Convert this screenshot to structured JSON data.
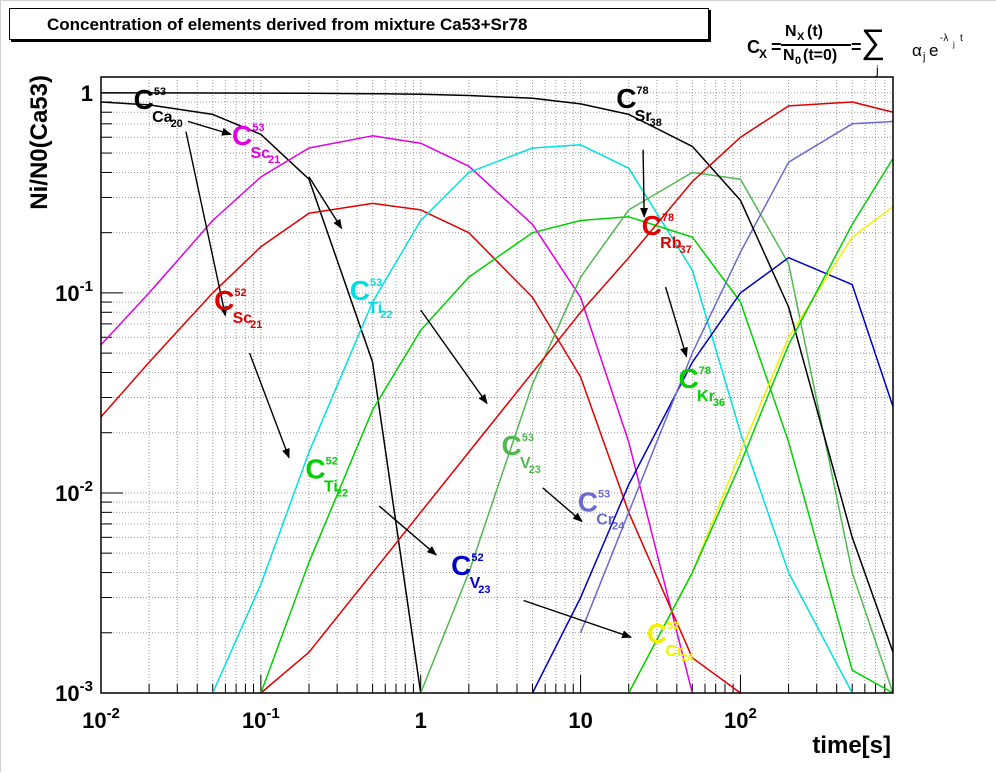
{
  "title": "Concentration of elements derived from mixture Ca53+Sr78",
  "formula": {
    "lhs": "C",
    "lhs_sub": "X",
    "eq": "=",
    "numerator": "N",
    "numerator_sub": "X",
    "numerator_arg": "(t)",
    "denominator": "N",
    "denominator_sub": "0",
    "denominator_arg": "(t=0)",
    "eq2": "=",
    "sum_symbol": "∑",
    "sum_index": "j",
    "term": "α",
    "term_sub": "j",
    "exp_base": "e",
    "exp_power": "-λ",
    "exp_power_sub": "j",
    "exp_power_var": "t"
  },
  "chart_data": {
    "type": "line",
    "title": "Concentration of elements derived from mixture Ca53+Sr78",
    "xlabel": "time[s]",
    "ylabel": "Ni/N0(Ca53)",
    "xscale": "log",
    "yscale": "log",
    "xlim": [
      0.01,
      900
    ],
    "ylim": [
      0.001,
      1.2
    ],
    "grid": true,
    "x_ticks": [
      {
        "value": 0.01,
        "base": "10",
        "exp": "-2"
      },
      {
        "value": 0.1,
        "base": "10",
        "exp": "-1"
      },
      {
        "value": 1,
        "base": "1",
        "exp": ""
      },
      {
        "value": 10,
        "base": "10",
        "exp": ""
      },
      {
        "value": 100,
        "base": "10",
        "exp": "2"
      }
    ],
    "y_ticks": [
      {
        "value": 0.001,
        "base": "10",
        "exp": "-3"
      },
      {
        "value": 0.01,
        "base": "10",
        "exp": "-2"
      },
      {
        "value": 0.1,
        "base": "10",
        "exp": "-1"
      },
      {
        "value": 1,
        "base": "1",
        "exp": ""
      }
    ],
    "x": [
      0.01,
      0.02,
      0.05,
      0.1,
      0.2,
      0.5,
      1,
      2,
      5,
      10,
      20,
      50,
      100,
      200,
      500,
      900
    ],
    "series": [
      {
        "id": "ca53",
        "name": "Ca53",
        "color": "#000000",
        "values": [
          0.9,
          0.87,
          0.78,
          0.62,
          0.37,
          0.045,
          0.0008,
          null,
          null,
          null,
          null,
          null,
          null,
          null,
          null,
          null
        ]
      },
      {
        "id": "sc53",
        "name": "Sc53",
        "color": "#e000e0",
        "values": [
          0.055,
          0.1,
          0.23,
          0.38,
          0.53,
          0.61,
          0.56,
          0.43,
          0.22,
          0.095,
          0.018,
          0.0008,
          null,
          null,
          null,
          null
        ]
      },
      {
        "id": "sc52",
        "name": "Sc52",
        "color": "#e00000",
        "values": [
          0.024,
          0.045,
          0.1,
          0.17,
          0.25,
          0.28,
          0.26,
          0.2,
          0.095,
          0.038,
          0.008,
          0.0015,
          0.0008,
          null,
          null,
          null
        ]
      },
      {
        "id": "ti53",
        "name": "Ti53",
        "color": "#00e0e0",
        "values": [
          null,
          null,
          0.0008,
          0.0035,
          0.016,
          0.09,
          0.23,
          0.4,
          0.53,
          0.55,
          0.42,
          0.13,
          0.02,
          0.004,
          0.0008,
          null
        ]
      },
      {
        "id": "ti52",
        "name": "Ti52",
        "color": "#00d000",
        "values": [
          null,
          null,
          null,
          0.0009,
          0.0045,
          0.026,
          0.065,
          0.12,
          0.2,
          0.23,
          0.24,
          0.19,
          0.09,
          0.018,
          0.0013,
          0.0008
        ]
      },
      {
        "id": "v53",
        "name": "V53",
        "color": "#50b850",
        "values": [
          null,
          null,
          null,
          null,
          null,
          null,
          0.0008,
          0.004,
          0.035,
          0.12,
          0.26,
          0.4,
          0.37,
          0.14,
          0.004,
          0.0008
        ]
      },
      {
        "id": "v52",
        "name": "V52",
        "color": "#0000c8",
        "values": [
          null,
          null,
          null,
          null,
          null,
          null,
          null,
          null,
          0.0008,
          0.003,
          0.011,
          0.045,
          0.1,
          0.15,
          0.11,
          0.027
        ]
      },
      {
        "id": "cr53",
        "name": "Cr53",
        "color": "#6a6ad0",
        "values": [
          null,
          null,
          null,
          null,
          null,
          null,
          null,
          null,
          null,
          0.002,
          0.008,
          0.05,
          0.16,
          0.45,
          0.7,
          0.72
        ]
      },
      {
        "id": "cr52",
        "name": "Cr52",
        "color": "#f0f000",
        "values": [
          null,
          null,
          null,
          null,
          null,
          null,
          null,
          null,
          null,
          null,
          0.0008,
          0.004,
          0.016,
          0.06,
          0.19,
          0.27
        ]
      },
      {
        "id": "sr78",
        "name": "Sr78",
        "color": "#000000",
        "values": [
          0.999,
          0.999,
          0.998,
          0.997,
          0.995,
          0.99,
          0.985,
          0.97,
          0.94,
          0.88,
          0.78,
          0.54,
          0.29,
          0.085,
          0.006,
          0.0016
        ]
      },
      {
        "id": "rb78",
        "name": "Rb78",
        "color": "#e00000",
        "values": [
          null,
          null,
          null,
          0.0008,
          0.0016,
          0.004,
          0.008,
          0.016,
          0.04,
          0.08,
          0.15,
          0.36,
          0.6,
          0.86,
          0.9,
          0.8
        ]
      },
      {
        "id": "kr78",
        "name": "Kr78",
        "color": "#00d000",
        "values": [
          null,
          null,
          null,
          null,
          null,
          null,
          null,
          null,
          null,
          null,
          0.0008,
          0.004,
          0.014,
          0.055,
          0.22,
          0.47
        ]
      }
    ],
    "annotations": [
      {
        "id": "ca53",
        "base": "C",
        "sup": "53",
        "sub": "Ca",
        "subsub": "20",
        "color": "#000000",
        "x": 0.016,
        "y": 0.83,
        "arrows": [
          {
            "from": [
              0.034,
              0.64
            ],
            "to": [
              0.06,
              0.077
            ]
          },
          {
            "from": [
              0.035,
              0.72
            ],
            "to": [
              0.065,
              0.62
            ]
          }
        ]
      },
      {
        "id": "sc53",
        "base": "C",
        "sup": "53",
        "sub": "Sc",
        "subsub": "21",
        "color": "#e000e0",
        "x": 0.066,
        "y": 0.55,
        "arrows": [
          {
            "from": [
              0.2,
              0.38
            ],
            "to": [
              0.32,
              0.21
            ]
          }
        ]
      },
      {
        "id": "sc52",
        "base": "C",
        "sup": "52",
        "sub": "Sc",
        "subsub": "21",
        "color": "#e00000",
        "x": 0.051,
        "y": 0.082,
        "arrows": [
          {
            "from": [
              0.085,
              0.05
            ],
            "to": [
              0.15,
              0.015
            ]
          }
        ]
      },
      {
        "id": "ti53",
        "base": "C",
        "sup": "53",
        "sub": "Ti",
        "subsub": "22",
        "color": "#00e0e0",
        "x": 0.36,
        "y": 0.092,
        "arrows": [
          {
            "from": [
              1.0,
              0.082
            ],
            "to": [
              2.6,
              0.028
            ]
          }
        ]
      },
      {
        "id": "ti52",
        "base": "C",
        "sup": "52",
        "sub": "Ti",
        "subsub": "22",
        "color": "#00d000",
        "x": 0.19,
        "y": 0.0118,
        "arrows": [
          {
            "from": [
              0.55,
              0.0086
            ],
            "to": [
              1.25,
              0.0049
            ]
          }
        ]
      },
      {
        "id": "v53",
        "base": "C",
        "sup": "53",
        "sub": "V",
        "subsub": "23",
        "color": "#50b850",
        "x": 3.2,
        "y": 0.0155,
        "arrows": [
          {
            "from": [
              5.8,
              0.0106
            ],
            "to": [
              10.2,
              0.0072
            ]
          }
        ]
      },
      {
        "id": "v52",
        "base": "C",
        "sup": "52",
        "sub": "V",
        "subsub": "23",
        "color": "#0000c8",
        "x": 1.55,
        "y": 0.0039,
        "arrows": [
          {
            "from": [
              4.4,
              0.0029
            ],
            "to": [
              20.7,
              0.0019
            ]
          }
        ]
      },
      {
        "id": "cr53",
        "base": "C",
        "sup": "53",
        "sub": "Cr",
        "subsub": "24",
        "color": "#6a6ad0",
        "x": 9.6,
        "y": 0.0081,
        "arrows": []
      },
      {
        "id": "cr52",
        "base": "C",
        "sup": "52",
        "sub": "Cr",
        "subsub": "24",
        "color": "#f0f000",
        "x": 26,
        "y": 0.00178,
        "arrows": []
      },
      {
        "id": "sr78",
        "base": "C",
        "sup": "78",
        "sub": "Sr",
        "subsub": "38",
        "color": "#000000",
        "x": 16.7,
        "y": 0.84,
        "arrows": [
          {
            "from": [
              24.6,
              0.52
            ],
            "to": [
              25,
              0.24
            ]
          }
        ]
      },
      {
        "id": "rb78",
        "base": "C",
        "sup": "78",
        "sub": "Rb",
        "subsub": "37",
        "color": "#e00000",
        "x": 24.1,
        "y": 0.195,
        "arrows": [
          {
            "from": [
              34,
              0.107
            ],
            "to": [
              46,
              0.048
            ]
          }
        ]
      },
      {
        "id": "kr78",
        "base": "C",
        "sup": "78",
        "sub": "Kr",
        "subsub": "36",
        "color": "#00d000",
        "x": 41,
        "y": 0.0335,
        "arrows": []
      }
    ]
  }
}
